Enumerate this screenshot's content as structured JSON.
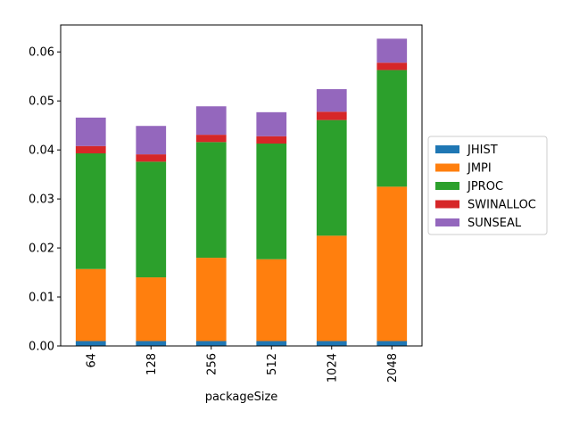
{
  "chart_data": {
    "type": "bar",
    "stacked": true,
    "title": "",
    "xlabel": "packageSize",
    "ylabel": "",
    "categories": [
      "64",
      "128",
      "256",
      "512",
      "1024",
      "2048"
    ],
    "ylim": [
      0,
      0.0655
    ],
    "yticks": [
      0.0,
      0.01,
      0.02,
      0.03,
      0.04,
      0.05,
      0.06
    ],
    "ytick_labels": [
      "0.00",
      "0.01",
      "0.02",
      "0.03",
      "0.04",
      "0.05",
      "0.06"
    ],
    "grid": false,
    "legend_position": "center-right, outside plot",
    "series": [
      {
        "name": "JHIST",
        "color": "#1f77b4",
        "values": [
          0.001,
          0.001,
          0.001,
          0.001,
          0.001,
          0.001
        ]
      },
      {
        "name": "JMPI",
        "color": "#ff7f0e",
        "values": [
          0.0147,
          0.013,
          0.017,
          0.0167,
          0.0215,
          0.0315
        ]
      },
      {
        "name": "JPROC",
        "color": "#2ca02c",
        "values": [
          0.0236,
          0.0236,
          0.0236,
          0.0236,
          0.0236,
          0.0238
        ]
      },
      {
        "name": "SWINALLOC",
        "color": "#d62728",
        "values": [
          0.0015,
          0.0015,
          0.0015,
          0.0015,
          0.0017,
          0.0015
        ]
      },
      {
        "name": "SUNSEAL",
        "color": "#9467bd",
        "values": [
          0.0058,
          0.0058,
          0.0058,
          0.0049,
          0.0046,
          0.0049
        ]
      }
    ]
  }
}
